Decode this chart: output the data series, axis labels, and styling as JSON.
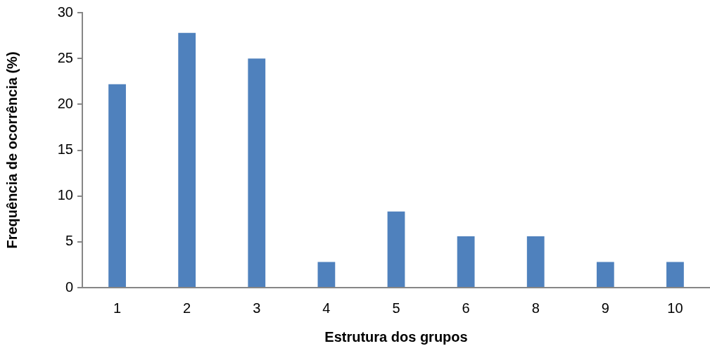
{
  "chart_data": {
    "type": "bar",
    "xlabel": "Estrutura dos grupos",
    "ylabel": "Frequência de ocorrência (%)",
    "categories": [
      "1",
      "2",
      "3",
      "4",
      "5",
      "6",
      "8",
      "9",
      "10"
    ],
    "values": [
      22.2,
      27.8,
      25.0,
      2.8,
      8.3,
      5.6,
      5.6,
      2.8,
      2.8
    ],
    "color": "#4f81bd",
    "ylim": [
      0,
      30
    ],
    "yticks": [
      0,
      5,
      10,
      15,
      20,
      25,
      30
    ],
    "grid": false,
    "legend": false
  }
}
